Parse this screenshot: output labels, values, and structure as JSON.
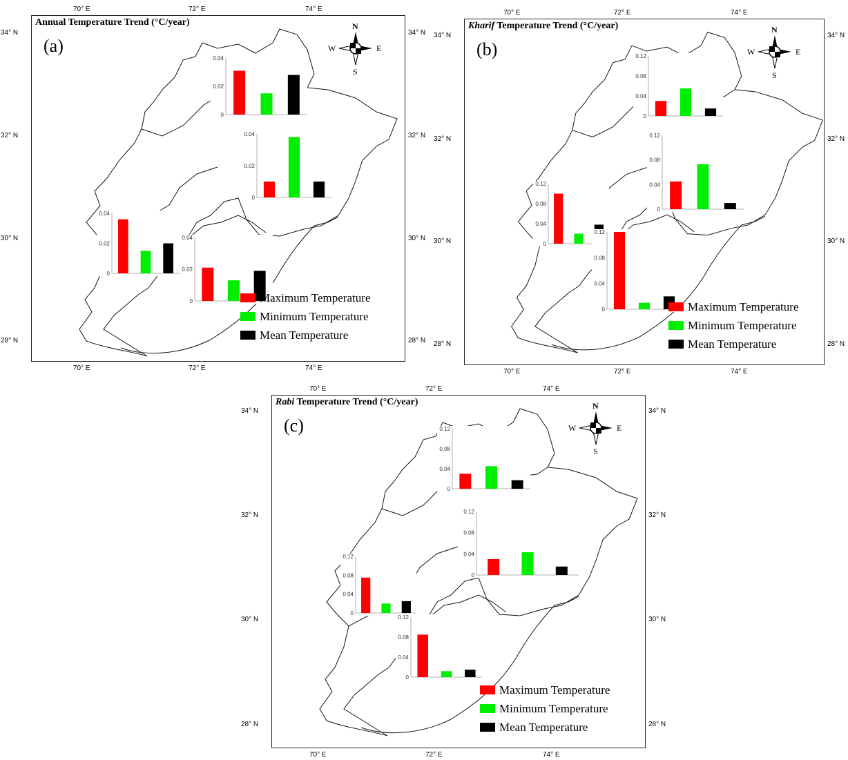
{
  "panels": [
    {
      "id": "a",
      "label": "(a)",
      "title_em": "",
      "title": "Annual Temperature Trend (°C/year)",
      "lon_ticks": [
        "70° E",
        "72° E",
        "74° E"
      ],
      "lat_ticks": [
        "34° N",
        "32° N",
        "30° N",
        "28° N"
      ],
      "compass": {
        "n": "N",
        "s": "S",
        "e": "E",
        "w": "W"
      }
    },
    {
      "id": "b",
      "label": "(b)",
      "title_em": "Kharif",
      "title": " Temperature Trend (°C/year)",
      "lon_ticks": [
        "70° E",
        "72° E",
        "74° E"
      ],
      "lat_ticks": [
        "34° N",
        "32° N",
        "30° N",
        "28° N"
      ],
      "compass": {
        "n": "N",
        "s": "S",
        "e": "E",
        "w": "W"
      }
    },
    {
      "id": "c",
      "label": "(c)",
      "title_em": "Rabi",
      "title": " Temperature Trend (°C/year)",
      "lon_ticks": [
        "70° E",
        "72° E",
        "74° E"
      ],
      "lat_ticks": [
        "34° N",
        "32° N",
        "30° N",
        "28° N"
      ],
      "compass": {
        "n": "N",
        "s": "S",
        "e": "E",
        "w": "W"
      }
    }
  ],
  "legend": [
    {
      "label": "Maximum Temperature",
      "color": "#ff0000"
    },
    {
      "label": "Minimum Temperature",
      "color": "#00ee00"
    },
    {
      "label": "Mean Temperature",
      "color": "#000000"
    }
  ],
  "chart_data": [
    {
      "panel": "a",
      "type": "bar",
      "categories": [
        "Maximum Temperature",
        "Minimum Temperature",
        "Mean Temperature"
      ],
      "insets": [
        {
          "zone": "north",
          "ylim": [
            0,
            0.04
          ],
          "yticks": [
            "0",
            "0.02",
            "0.04"
          ],
          "values": [
            0.031,
            0.015,
            0.028
          ]
        },
        {
          "zone": "central",
          "ylim": [
            0,
            0.04
          ],
          "yticks": [
            "0",
            "0.02",
            "0.04"
          ],
          "values": [
            0.01,
            0.038,
            0.01
          ]
        },
        {
          "zone": "west",
          "ylim": [
            0,
            0.04
          ],
          "yticks": [
            "0",
            "0.02",
            "0.04"
          ],
          "values": [
            0.036,
            0.015,
            0.02
          ]
        },
        {
          "zone": "south",
          "ylim": [
            0,
            0.04
          ],
          "yticks": [
            "0",
            "0.02",
            "0.04"
          ],
          "values": [
            0.021,
            0.013,
            0.019
          ]
        }
      ]
    },
    {
      "panel": "b",
      "type": "bar",
      "categories": [
        "Maximum Temperature",
        "Minimum Temperature",
        "Mean Temperature"
      ],
      "insets": [
        {
          "zone": "north",
          "ylim": [
            0,
            0.12
          ],
          "yticks": [
            "0",
            "0.04",
            "0.08",
            "0.12"
          ],
          "values": [
            0.03,
            0.055,
            0.015
          ]
        },
        {
          "zone": "central",
          "ylim": [
            0,
            0.12
          ],
          "yticks": [
            "0",
            "0.04",
            "0.08",
            "0.12"
          ],
          "values": [
            0.045,
            0.073,
            0.01
          ]
        },
        {
          "zone": "west",
          "ylim": [
            0,
            0.12
          ],
          "yticks": [
            "0",
            "0.04",
            "0.08",
            "0.12"
          ],
          "values": [
            0.1,
            0.02,
            0.038
          ]
        },
        {
          "zone": "south",
          "ylim": [
            0,
            0.12
          ],
          "yticks": [
            "0",
            "0.04",
            "0.08",
            "0.12"
          ],
          "values": [
            0.12,
            0.01,
            0.02
          ]
        }
      ]
    },
    {
      "panel": "c",
      "type": "bar",
      "categories": [
        "Maximum Temperature",
        "Minimum Temperature",
        "Mean Temperature"
      ],
      "insets": [
        {
          "zone": "north",
          "ylim": [
            0,
            0.12
          ],
          "yticks": [
            "0",
            "0.04",
            "0.08",
            "0.12"
          ],
          "values": [
            0.03,
            0.045,
            0.017
          ]
        },
        {
          "zone": "central",
          "ylim": [
            0,
            0.12
          ],
          "yticks": [
            "0",
            "0.04",
            "0.08",
            "0.12"
          ],
          "values": [
            0.03,
            0.043,
            0.016
          ]
        },
        {
          "zone": "west",
          "ylim": [
            0,
            0.12
          ],
          "yticks": [
            "0",
            "0.04",
            "0.08",
            "0.12"
          ],
          "values": [
            0.075,
            0.02,
            0.025
          ]
        },
        {
          "zone": "south",
          "ylim": [
            0,
            0.12
          ],
          "yticks": [
            "0",
            "0.04",
            "0.08",
            "0.12"
          ],
          "values": [
            0.085,
            0.012,
            0.015
          ]
        }
      ]
    }
  ]
}
